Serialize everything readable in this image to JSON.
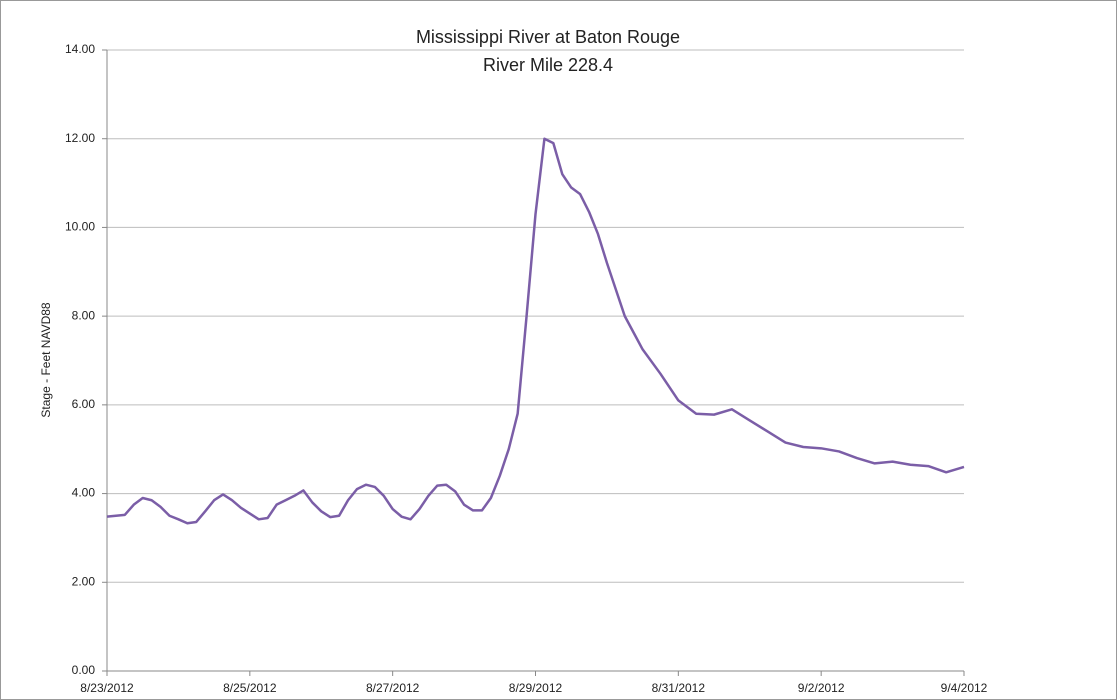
{
  "chart_data": {
    "type": "line",
    "title": "Mississippi River at Baton Rouge",
    "subtitle": "River Mile 228.4",
    "y_label": "Stage  -  Feet NAVD88",
    "x": [
      "2012-08-23T00:00",
      "2012-08-23T06:00",
      "2012-08-23T09:00",
      "2012-08-23T12:00",
      "2012-08-23T15:00",
      "2012-08-23T18:00",
      "2012-08-23T21:00",
      "2012-08-24T00:00",
      "2012-08-24T03:00",
      "2012-08-24T06:00",
      "2012-08-24T09:00",
      "2012-08-24T12:00",
      "2012-08-24T15:00",
      "2012-08-24T18:00",
      "2012-08-24T21:00",
      "2012-08-25T00:00",
      "2012-08-25T03:00",
      "2012-08-25T06:00",
      "2012-08-25T09:00",
      "2012-08-25T12:00",
      "2012-08-25T15:00",
      "2012-08-25T18:00",
      "2012-08-25T21:00",
      "2012-08-26T00:00",
      "2012-08-26T03:00",
      "2012-08-26T06:00",
      "2012-08-26T09:00",
      "2012-08-26T12:00",
      "2012-08-26T15:00",
      "2012-08-26T18:00",
      "2012-08-26T21:00",
      "2012-08-27T00:00",
      "2012-08-27T03:00",
      "2012-08-27T06:00",
      "2012-08-27T09:00",
      "2012-08-27T12:00",
      "2012-08-27T15:00",
      "2012-08-27T18:00",
      "2012-08-27T21:00",
      "2012-08-28T00:00",
      "2012-08-28T03:00",
      "2012-08-28T06:00",
      "2012-08-28T09:00",
      "2012-08-28T12:00",
      "2012-08-28T15:00",
      "2012-08-28T18:00",
      "2012-08-28T21:00",
      "2012-08-29T00:00",
      "2012-08-29T03:00",
      "2012-08-29T06:00",
      "2012-08-29T09:00",
      "2012-08-29T12:00",
      "2012-08-29T15:00",
      "2012-08-29T18:00",
      "2012-08-29T21:00",
      "2012-08-30T00:00",
      "2012-08-30T06:00",
      "2012-08-30T12:00",
      "2012-08-30T18:00",
      "2012-08-31T00:00",
      "2012-08-31T06:00",
      "2012-08-31T12:00",
      "2012-08-31T18:00",
      "2012-09-01T00:00",
      "2012-09-01T06:00",
      "2012-09-01T12:00",
      "2012-09-01T18:00",
      "2012-09-02T00:00",
      "2012-09-02T06:00",
      "2012-09-02T12:00",
      "2012-09-02T18:00",
      "2012-09-03T00:00",
      "2012-09-03T06:00",
      "2012-09-03T12:00",
      "2012-09-03T18:00",
      "2012-09-04T00:00"
    ],
    "series": [
      {
        "color": "#7b5ea7",
        "values": [
          3.48,
          3.52,
          3.75,
          3.9,
          3.85,
          3.7,
          3.5,
          3.42,
          3.33,
          3.36,
          3.6,
          3.85,
          3.98,
          3.85,
          3.68,
          3.55,
          3.42,
          3.45,
          3.75,
          3.85,
          3.95,
          4.07,
          3.8,
          3.6,
          3.47,
          3.5,
          3.85,
          4.1,
          4.2,
          4.15,
          3.95,
          3.65,
          3.48,
          3.42,
          3.65,
          3.95,
          4.18,
          4.2,
          4.05,
          3.75,
          3.62,
          3.62,
          3.9,
          4.4,
          5.0,
          5.8,
          8.0,
          10.3,
          12.0,
          11.9,
          11.2,
          10.9,
          10.75,
          10.35,
          9.85,
          9.2,
          8.0,
          7.25,
          6.7,
          6.1,
          5.8,
          5.78,
          5.9,
          5.65,
          5.4,
          5.15,
          5.05,
          5.02,
          4.95,
          4.8,
          4.68,
          4.72,
          4.65,
          4.62,
          4.48,
          4.6
        ]
      }
    ],
    "xlim": [
      "2012-08-23T00:00",
      "2012-09-04T00:00"
    ],
    "xticks": [
      {
        "value": "2012-08-23T00:00",
        "label": "8/23/2012"
      },
      {
        "value": "2012-08-25T00:00",
        "label": "8/25/2012"
      },
      {
        "value": "2012-08-27T00:00",
        "label": "8/27/2012"
      },
      {
        "value": "2012-08-29T00:00",
        "label": "8/29/2012"
      },
      {
        "value": "2012-08-31T00:00",
        "label": "8/31/2012"
      },
      {
        "value": "2012-09-02T00:00",
        "label": "9/2/2012"
      },
      {
        "value": "2012-09-04T00:00",
        "label": "9/4/2012"
      }
    ],
    "ylim": [
      0,
      14
    ],
    "yticks": [
      {
        "value": 0,
        "label": "0.00"
      },
      {
        "value": 2,
        "label": "2.00"
      },
      {
        "value": 4,
        "label": "4.00"
      },
      {
        "value": 6,
        "label": "6.00"
      },
      {
        "value": 8,
        "label": "8.00"
      },
      {
        "value": 10,
        "label": "10.00"
      },
      {
        "value": 12,
        "label": "12.00"
      },
      {
        "value": 14,
        "label": "14.00"
      }
    ],
    "grid": true
  }
}
